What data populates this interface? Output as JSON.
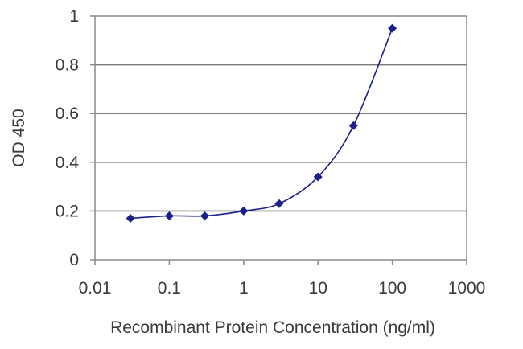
{
  "chart_data": {
    "type": "scatter",
    "title": "",
    "xlabel": "Recombinant Protein Concentration (ng/ml)",
    "ylabel": "OD 450",
    "x_scale": "log",
    "xlim": [
      0.01,
      1000
    ],
    "ylim": [
      0,
      1
    ],
    "x_ticks": [
      0.01,
      0.1,
      1,
      10,
      100,
      1000
    ],
    "x_tick_labels": [
      "0.01",
      "0.1",
      "1",
      "10",
      "100",
      "1000"
    ],
    "y_ticks": [
      0,
      0.2,
      0.4,
      0.6,
      0.8,
      1
    ],
    "y_tick_labels": [
      "0",
      "0.2",
      "0.4",
      "0.6",
      "0.8",
      "1"
    ],
    "grid": "horizontal",
    "series": [
      {
        "x": [
          0.03,
          0.1,
          0.3,
          1,
          3,
          10,
          30,
          100
        ],
        "y": [
          0.17,
          0.18,
          0.18,
          0.2,
          0.23,
          0.34,
          0.55,
          0.95
        ],
        "marker": "diamond",
        "fit_line": true,
        "color": "#1a1f8c"
      }
    ]
  }
}
